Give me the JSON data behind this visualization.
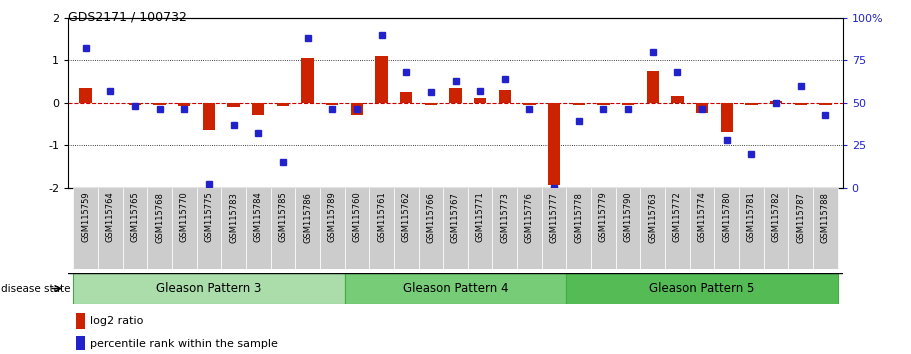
{
  "title": "GDS2171 / 100732",
  "samples": [
    "GSM115759",
    "GSM115764",
    "GSM115765",
    "GSM115768",
    "GSM115770",
    "GSM115775",
    "GSM115783",
    "GSM115784",
    "GSM115785",
    "GSM115786",
    "GSM115789",
    "GSM115760",
    "GSM115761",
    "GSM115762",
    "GSM115766",
    "GSM115767",
    "GSM115771",
    "GSM115773",
    "GSM115776",
    "GSM115777",
    "GSM115778",
    "GSM115779",
    "GSM115790",
    "GSM115763",
    "GSM115772",
    "GSM115774",
    "GSM115780",
    "GSM115781",
    "GSM115782",
    "GSM115787",
    "GSM115788"
  ],
  "log2_ratio": [
    0.35,
    0.0,
    -0.05,
    -0.05,
    -0.08,
    -0.65,
    -0.1,
    -0.3,
    -0.08,
    1.05,
    -0.05,
    -0.3,
    1.1,
    0.25,
    -0.05,
    0.35,
    0.1,
    0.3,
    -0.05,
    -1.95,
    -0.05,
    -0.05,
    -0.05,
    0.75,
    0.15,
    -0.25,
    -0.7,
    -0.05,
    0.05,
    -0.05,
    -0.05
  ],
  "percentile": [
    82,
    57,
    48,
    46,
    46,
    2,
    37,
    32,
    15,
    88,
    46,
    46,
    90,
    68,
    56,
    63,
    57,
    64,
    46,
    0,
    39,
    46,
    46,
    80,
    68,
    46,
    28,
    20,
    50,
    60,
    43
  ],
  "groups": [
    {
      "label": "Gleason Pattern 3",
      "start": 0,
      "end": 11
    },
    {
      "label": "Gleason Pattern 4",
      "start": 11,
      "end": 20
    },
    {
      "label": "Gleason Pattern 5",
      "start": 20,
      "end": 31
    }
  ],
  "group_colors": [
    "#AADDAA",
    "#77CC77",
    "#55BB55"
  ],
  "group_edge_color": "#44AA44",
  "bar_color": "#CC2200",
  "dot_color": "#2222CC",
  "zero_line_color": "#CC0000",
  "dotted_line_color": "#000000",
  "background_color": "#FFFFFF",
  "tick_box_color": "#CCCCCC",
  "ylim": [
    -2.0,
    2.0
  ],
  "y2lim": [
    0,
    100
  ],
  "yticks_left": [
    -2,
    -1,
    0,
    1,
    2
  ],
  "yticks_right": [
    0,
    25,
    50,
    75,
    100
  ],
  "ytick_labels_right": [
    "0",
    "25",
    "50",
    "75",
    "100%"
  ]
}
